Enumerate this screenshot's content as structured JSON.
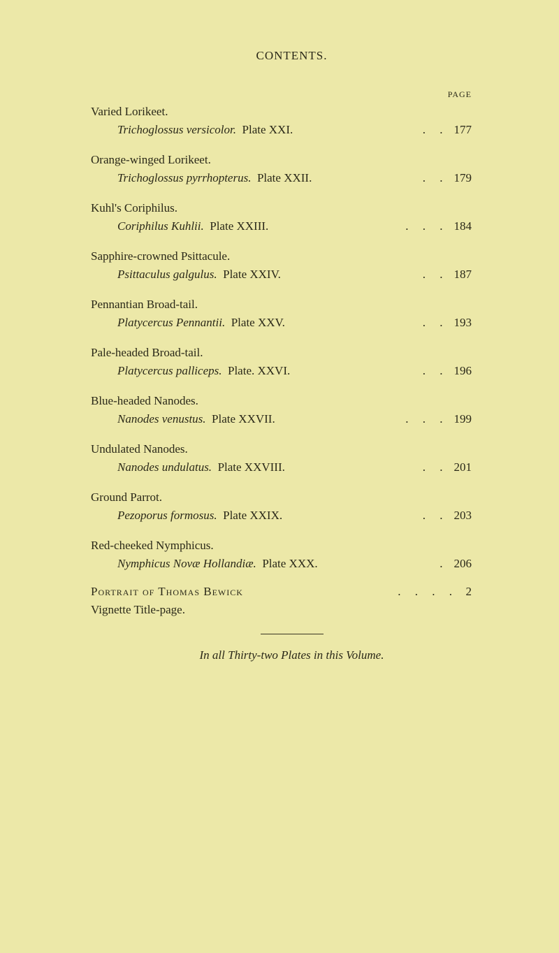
{
  "header": "CONTENTS.",
  "page_label": "PAGE",
  "entries": [
    {
      "title": "Varied Lorikeet.",
      "italic": "Trichoglossus versicolor.",
      "plate": "Plate XXI.",
      "dots": ".  .",
      "page": "177"
    },
    {
      "title": "Orange-winged Lorikeet.",
      "italic": "Trichoglossus pyrrhopterus.",
      "plate": "Plate XXII.",
      "dots": ".  .",
      "page": "179"
    },
    {
      "title": "Kuhl's Coriphilus.",
      "italic": "Coriphilus Kuhlii.",
      "plate": "Plate XXIII.",
      "dots": ".  .  .",
      "page": "184"
    },
    {
      "title": "Sapphire-crowned Psittacule.",
      "italic": "Psittaculus galgulus.",
      "plate": "Plate XXIV.",
      "dots": ".  .",
      "page": "187"
    },
    {
      "title": "Pennantian Broad-tail.",
      "italic": "Platycercus Pennantii.",
      "plate": "Plate XXV.",
      "dots": ".  .",
      "page": "193"
    },
    {
      "title": "Pale-headed Broad-tail.",
      "italic": "Platycercus palliceps.",
      "plate": "Plate. XXVI.",
      "dots": ".  .",
      "page": "196"
    },
    {
      "title": "Blue-headed Nanodes.",
      "italic": "Nanodes venustus.",
      "plate": "Plate XXVII.",
      "dots": ".  .  .",
      "page": "199"
    },
    {
      "title": "Undulated Nanodes.",
      "italic": "Nanodes undulatus.",
      "plate": "Plate XXVIII.",
      "dots": ".  .",
      "page": "201"
    },
    {
      "title": "Ground Parrot.",
      "italic": "Pezoporus formosus.",
      "plate": "Plate XXIX.",
      "dots": ".  .",
      "page": "203"
    },
    {
      "title": "Red-cheeked Nymphicus.",
      "italic": "Nymphicus Novæ Hollandiæ.",
      "plate": "Plate XXX.",
      "dots": ".",
      "page": "206"
    }
  ],
  "portrait": {
    "text_pre": "Portrait of Thomas Bewick",
    "dots": ".  .  .  .",
    "page": "2"
  },
  "vignette": "Vignette Title-page.",
  "footer": {
    "italic_pre": "In all Thirty-two Plates in this Volume."
  }
}
